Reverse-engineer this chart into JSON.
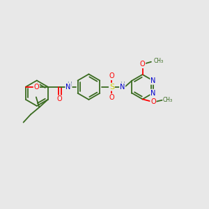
{
  "bg_color": "#e8e8e8",
  "bond_color": "#3a6b20",
  "atom_colors": {
    "O": "#ff0000",
    "N": "#0000cc",
    "S": "#cccc00",
    "H": "#7788aa",
    "C": "#3a6b20"
  },
  "figsize": [
    3.0,
    3.0
  ],
  "dpi": 100
}
